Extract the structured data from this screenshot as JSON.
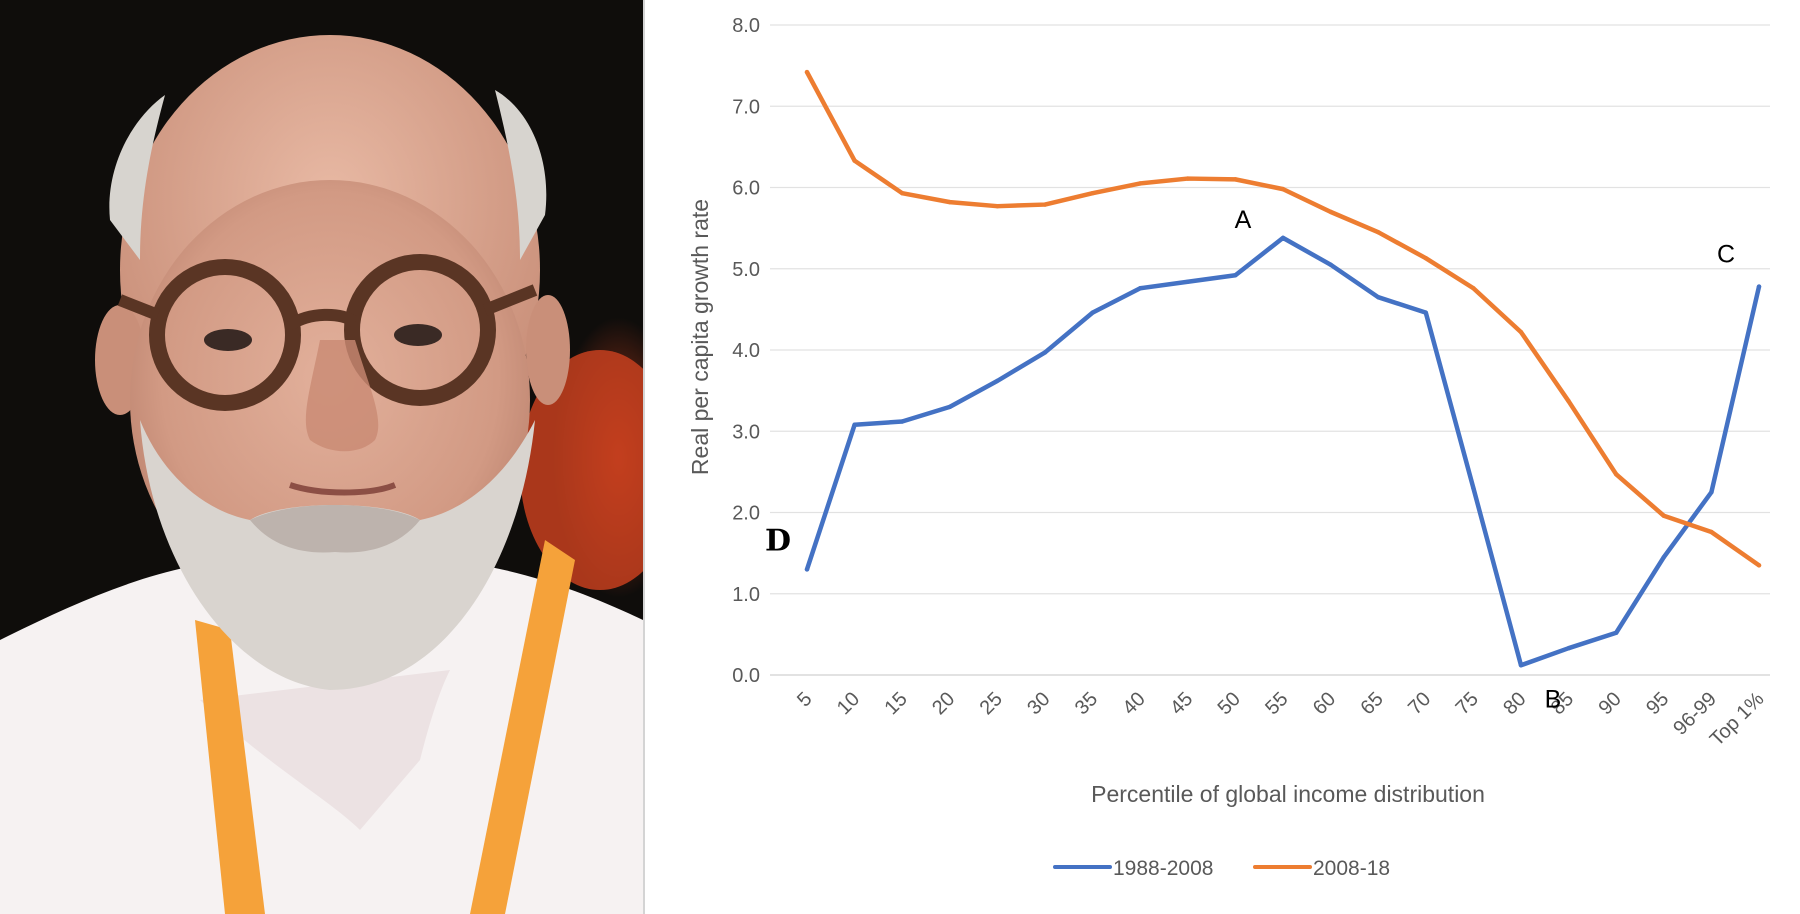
{
  "photo": {
    "kind": "portrait photograph",
    "palette": {
      "background": "#0f0d0b",
      "skin": "#d8a48e",
      "shirt": "#f6f2f2",
      "lanyard": "#f5a23a",
      "glasses": "#5a3524",
      "hair": "#d7d4cf"
    }
  },
  "chart_data": {
    "type": "line",
    "title": "",
    "xlabel": "Percentile of global income distribution",
    "ylabel": "Real per capita growth rate",
    "ylim": [
      0.0,
      8.0
    ],
    "y_ticks": [
      "0.0",
      "1.0",
      "2.0",
      "3.0",
      "4.0",
      "5.0",
      "6.0",
      "7.0",
      "8.0"
    ],
    "grid": true,
    "legend_position": "bottom",
    "categories": [
      "5",
      "10",
      "15",
      "20",
      "25",
      "30",
      "35",
      "40",
      "45",
      "50",
      "55",
      "60",
      "65",
      "70",
      "75",
      "80",
      "85",
      "90",
      "95",
      "96-99",
      "Top 1%"
    ],
    "series": [
      {
        "name": "1988-2008",
        "color": "#4472c4",
        "values": [
          1.3,
          3.08,
          3.12,
          3.3,
          3.62,
          3.97,
          4.46,
          4.76,
          4.84,
          4.92,
          5.38,
          5.05,
          4.65,
          4.46,
          2.3,
          0.12,
          0.33,
          0.52,
          1.45,
          2.25,
          4.78
        ]
      },
      {
        "name": "2008-18",
        "color": "#ed7d31",
        "values": [
          7.42,
          6.33,
          5.93,
          5.82,
          5.77,
          5.79,
          5.93,
          6.05,
          6.11,
          6.1,
          5.98,
          5.7,
          5.45,
          5.13,
          4.76,
          4.22,
          3.37,
          2.47,
          1.96,
          1.76,
          1.35
        ]
      }
    ],
    "annotations": [
      {
        "label": "A",
        "category": "55",
        "value": 5.38
      },
      {
        "label": "B",
        "category": "80",
        "value": 0.12
      },
      {
        "label": "C",
        "category": "Top 1%",
        "value": 4.78
      },
      {
        "label": "D",
        "category": "5",
        "value": 1.3
      }
    ]
  }
}
